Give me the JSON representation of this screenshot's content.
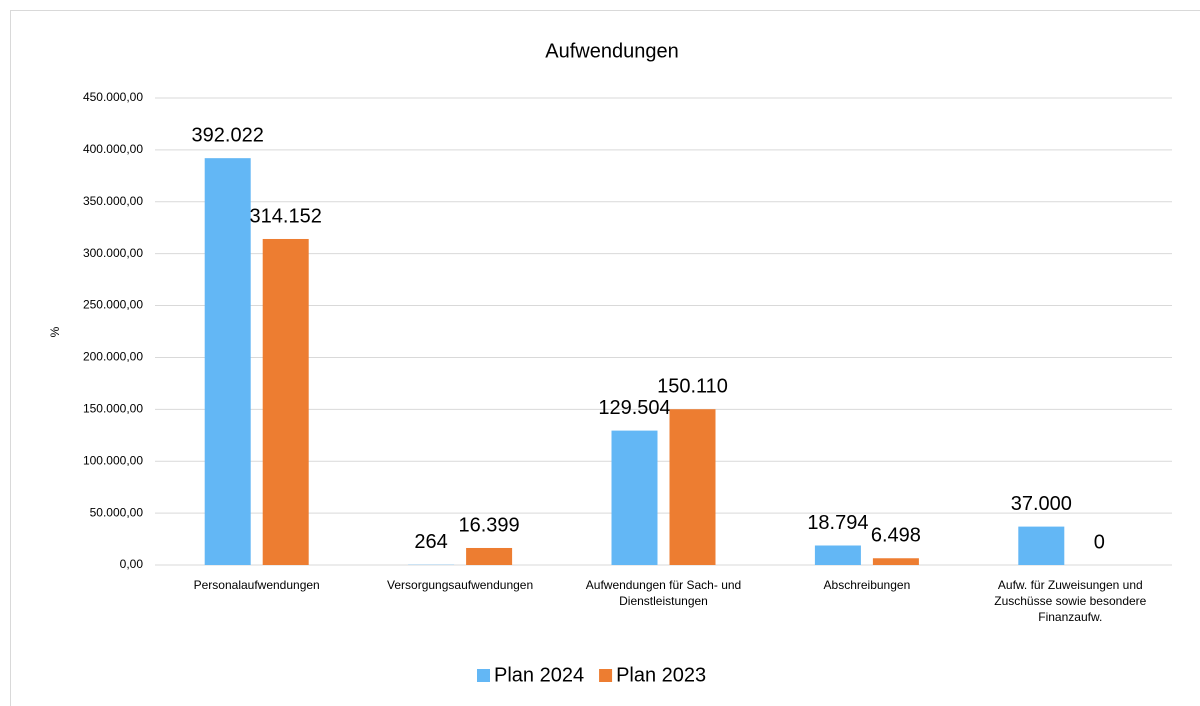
{
  "chart_data": {
    "type": "bar",
    "title": "Aufwendungen",
    "y_label": "%",
    "categories": [
      "Personalaufwendungen",
      "Versorgungsaufwendungen",
      "Aufwendungen für Sach- und Dienstleistungen",
      "Abschreibungen",
      "Aufw. für Zuweisungen und Zuschüsse sowie besondere Finanzaufw."
    ],
    "series": [
      {
        "name": "Plan 2024",
        "color": "#63b7f5",
        "values": [
          392022,
          264,
          129504,
          18794,
          37000
        ],
        "value_labels": [
          "392.022",
          "264",
          "129.504",
          "18.794",
          "37.000"
        ]
      },
      {
        "name": "Plan 2023",
        "color": "#ed7d31",
        "values": [
          314152,
          16399,
          150110,
          6498,
          0
        ],
        "value_labels": [
          "314.152",
          "16.399",
          "150.110",
          "6.498",
          "0"
        ]
      }
    ],
    "ylim": [
      0,
      450000
    ],
    "yticks": [
      {
        "value": 0,
        "label": "0,00"
      },
      {
        "value": 50000,
        "label": "50.000,00"
      },
      {
        "value": 100000,
        "label": "100.000,00"
      },
      {
        "value": 150000,
        "label": "150.000,00"
      },
      {
        "value": 200000,
        "label": "200.000,00"
      },
      {
        "value": 250000,
        "label": "250.000,00"
      },
      {
        "value": 300000,
        "label": "300.000,00"
      },
      {
        "value": 350000,
        "label": "350.000,00"
      },
      {
        "value": 400000,
        "label": "400.000,00"
      },
      {
        "value": 450000,
        "label": "450.000,00"
      }
    ],
    "grid": true,
    "legend": "bottom"
  }
}
